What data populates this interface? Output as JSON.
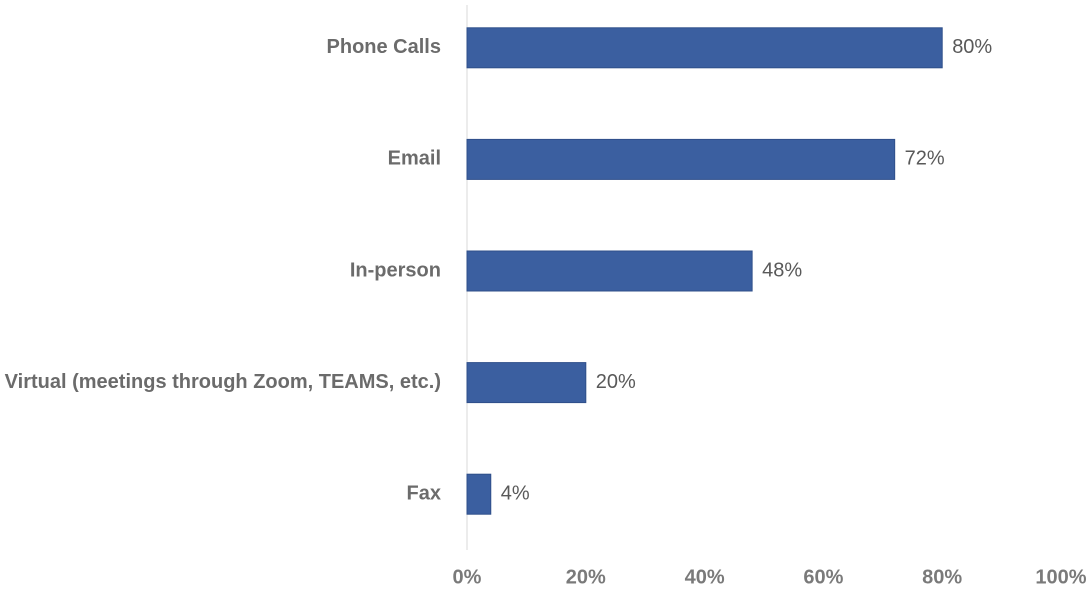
{
  "chart_data": {
    "type": "hbar",
    "categories": [
      "Phone Calls",
      "Email",
      "In-person",
      "Virtual (meetings through Zoom, TEAMS, etc.)",
      "Fax"
    ],
    "values": [
      80,
      72,
      48,
      20,
      4
    ],
    "value_labels": [
      "80%",
      "72%",
      "48%",
      "20%",
      "4%"
    ],
    "color": "#3b5fa0",
    "xlim": [
      0,
      100
    ],
    "xticks": [
      {
        "value": 0,
        "label": "0%"
      },
      {
        "value": 20,
        "label": "20%"
      },
      {
        "value": 40,
        "label": "40%"
      },
      {
        "value": 60,
        "label": "60%"
      },
      {
        "value": 80,
        "label": "80%"
      },
      {
        "value": 100,
        "label": "100%"
      }
    ],
    "grid": false
  }
}
